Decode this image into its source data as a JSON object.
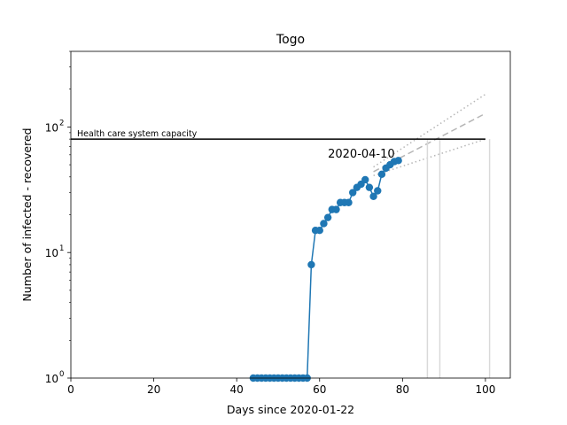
{
  "chart_data": {
    "type": "line",
    "title": "Togo",
    "xlabel": "Days since 2020-01-22",
    "ylabel": "Number of infected - recovered",
    "y_scale": "log",
    "xlim": [
      0,
      106
    ],
    "ylim": [
      1,
      400
    ],
    "x_ticks": [
      0,
      20,
      40,
      60,
      80,
      100
    ],
    "y_ticks": [
      {
        "value": 1,
        "label": "10",
        "exp": "0"
      },
      {
        "value": 10,
        "label": "10",
        "exp": "1"
      },
      {
        "value": 100,
        "label": "10",
        "exp": "2"
      }
    ],
    "grid": false,
    "series": [
      {
        "color": "#1f77b4",
        "marker": "circle",
        "x": [
          44,
          45,
          46,
          47,
          48,
          49,
          50,
          51,
          52,
          53,
          54,
          55,
          56,
          57,
          58,
          59,
          60,
          61,
          62,
          63,
          64,
          65,
          66,
          67,
          68,
          69,
          70,
          71,
          72,
          73,
          74,
          75,
          76,
          77,
          78,
          79
        ],
        "y": [
          1,
          1,
          1,
          1,
          1,
          1,
          1,
          1,
          1,
          1,
          1,
          1,
          1,
          1,
          8,
          15,
          15,
          17,
          19,
          22,
          22,
          25,
          25,
          25,
          30,
          33,
          35,
          38,
          33,
          28,
          31,
          42,
          47,
          50,
          53,
          54
        ]
      }
    ],
    "capacity": {
      "value": 80,
      "label": "Health care system capacity"
    },
    "annotation": {
      "text": "2020-04-10",
      "x": 62,
      "y": 57
    },
    "projections": [
      {
        "style": "dashed",
        "x": [
          73,
          100
        ],
        "y": [
          44,
          128
        ]
      },
      {
        "style": "dotted",
        "x": [
          73,
          100
        ],
        "y": [
          48,
          182
        ]
      },
      {
        "style": "dotted",
        "x": [
          73,
          100
        ],
        "y": [
          41,
          80
        ]
      }
    ],
    "vertical_markers": [
      86,
      89,
      101
    ],
    "colors": {
      "series": "#1f77b4",
      "capacity": "#000000",
      "projection": "#b5b5b5",
      "markers": "#d9d9d9"
    }
  }
}
